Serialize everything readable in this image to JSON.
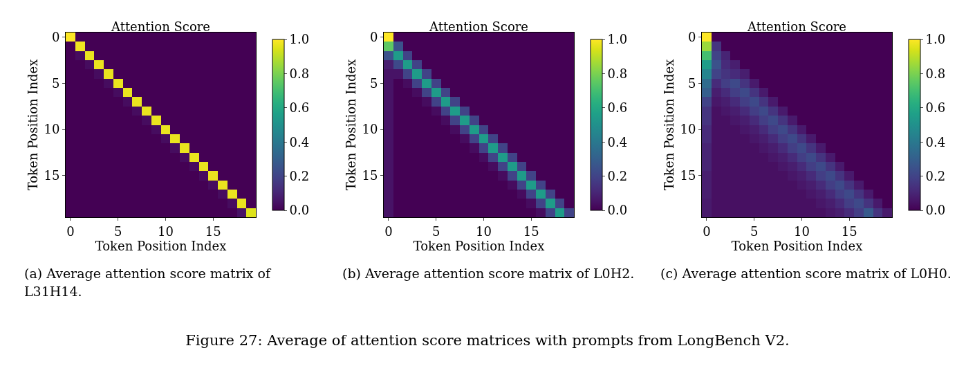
{
  "chart_data": [
    {
      "type": "heatmap",
      "title": "Attention Score",
      "xlabel": "Token Position Index",
      "ylabel": "Token Position Index",
      "categories": [
        "0",
        null,
        null,
        null,
        null,
        "5",
        null,
        null,
        null,
        null,
        "10",
        null,
        null,
        null,
        null,
        "15",
        null,
        null,
        null,
        null
      ],
      "y_categories": [
        "0",
        null,
        null,
        null,
        null,
        "5",
        null,
        null,
        null,
        null,
        "10",
        null,
        null,
        null,
        null,
        "15",
        null,
        null,
        null,
        null
      ],
      "clim": [
        0,
        1
      ],
      "cticks": [
        {
          "value": 0,
          "label": "0.0"
        },
        {
          "value": 0.2,
          "label": "0.2"
        },
        {
          "value": 0.4,
          "label": "0.4"
        },
        {
          "value": 0.6,
          "label": "0.6"
        },
        {
          "value": 0.8,
          "label": "0.8"
        },
        {
          "value": 1,
          "label": "1.0"
        }
      ],
      "annotations": [
        "(a) Average attention score matrix of L31H14."
      ],
      "cells": [
        [
          1,
          0,
          0,
          0,
          0,
          0,
          0,
          0,
          0,
          0,
          0,
          0,
          0,
          0,
          0,
          0,
          0,
          0,
          0,
          0
        ],
        [
          0,
          0.98,
          0,
          0,
          0,
          0,
          0,
          0,
          0,
          0,
          0,
          0,
          0,
          0,
          0,
          0,
          0,
          0,
          0,
          0
        ],
        [
          0,
          0.03,
          0.97,
          0,
          0,
          0,
          0,
          0,
          0,
          0,
          0,
          0,
          0,
          0,
          0,
          0,
          0,
          0,
          0,
          0
        ],
        [
          0,
          0,
          0.03,
          0.97,
          0,
          0,
          0,
          0,
          0,
          0,
          0,
          0,
          0,
          0,
          0,
          0,
          0,
          0,
          0,
          0
        ],
        [
          0,
          0,
          0,
          0.03,
          0.97,
          0,
          0,
          0,
          0,
          0,
          0,
          0,
          0,
          0,
          0,
          0,
          0,
          0,
          0,
          0
        ],
        [
          0,
          0,
          0,
          0,
          0.03,
          0.97,
          0,
          0,
          0,
          0,
          0,
          0,
          0,
          0,
          0,
          0,
          0,
          0,
          0,
          0
        ],
        [
          0,
          0,
          0,
          0,
          0,
          0.03,
          0.97,
          0,
          0,
          0,
          0,
          0,
          0,
          0,
          0,
          0,
          0,
          0,
          0,
          0
        ],
        [
          0,
          0,
          0,
          0,
          0,
          0,
          0.03,
          0.97,
          0,
          0,
          0,
          0,
          0,
          0,
          0,
          0,
          0,
          0,
          0,
          0
        ],
        [
          0,
          0,
          0,
          0,
          0,
          0,
          0,
          0.03,
          0.97,
          0,
          0,
          0,
          0,
          0,
          0,
          0,
          0,
          0,
          0,
          0
        ],
        [
          0,
          0,
          0,
          0,
          0,
          0,
          0,
          0,
          0.03,
          0.97,
          0,
          0,
          0,
          0,
          0,
          0,
          0,
          0,
          0,
          0
        ],
        [
          0,
          0,
          0,
          0,
          0,
          0,
          0,
          0,
          0,
          0.03,
          0.97,
          0,
          0,
          0,
          0,
          0,
          0,
          0,
          0,
          0
        ],
        [
          0,
          0,
          0,
          0,
          0,
          0,
          0,
          0,
          0,
          0,
          0.03,
          0.97,
          0,
          0,
          0,
          0,
          0,
          0,
          0,
          0
        ],
        [
          0,
          0,
          0,
          0,
          0,
          0,
          0,
          0,
          0,
          0,
          0,
          0.03,
          0.97,
          0,
          0,
          0,
          0,
          0,
          0,
          0
        ],
        [
          0,
          0,
          0,
          0,
          0,
          0,
          0,
          0,
          0,
          0,
          0,
          0,
          0.03,
          0.97,
          0,
          0,
          0,
          0,
          0,
          0
        ],
        [
          0,
          0,
          0,
          0,
          0,
          0,
          0,
          0,
          0,
          0,
          0,
          0,
          0,
          0.03,
          0.97,
          0,
          0,
          0,
          0,
          0
        ],
        [
          0,
          0,
          0,
          0,
          0,
          0,
          0,
          0,
          0,
          0,
          0,
          0,
          0,
          0,
          0.03,
          0.97,
          0,
          0,
          0,
          0
        ],
        [
          0,
          0,
          0,
          0,
          0,
          0,
          0,
          0,
          0,
          0,
          0,
          0,
          0,
          0,
          0,
          0.03,
          0.97,
          0,
          0,
          0
        ],
        [
          0,
          0,
          0,
          0,
          0,
          0,
          0,
          0,
          0,
          0,
          0,
          0,
          0,
          0,
          0,
          0,
          0.03,
          0.97,
          0,
          0
        ],
        [
          0,
          0,
          0,
          0,
          0,
          0,
          0,
          0,
          0,
          0,
          0,
          0,
          0,
          0,
          0,
          0,
          0,
          0.03,
          0.97,
          0
        ],
        [
          0,
          0,
          0,
          0,
          0,
          0,
          0,
          0,
          0,
          0,
          0,
          0,
          0,
          0,
          0,
          0,
          0,
          0,
          0.05,
          0.95
        ]
      ]
    },
    {
      "type": "heatmap",
      "title": "Attention Score",
      "xlabel": "Token Position Index",
      "ylabel": "Token Position Index",
      "categories": [
        "0",
        null,
        null,
        null,
        null,
        "5",
        null,
        null,
        null,
        null,
        "10",
        null,
        null,
        null,
        null,
        "15",
        null,
        null,
        null,
        null
      ],
      "y_categories": [
        "0",
        null,
        null,
        null,
        null,
        "5",
        null,
        null,
        null,
        null,
        "10",
        null,
        null,
        null,
        null,
        "15",
        null,
        null,
        null,
        null
      ],
      "clim": [
        0,
        1
      ],
      "cticks": [
        {
          "value": 0,
          "label": "0.0"
        },
        {
          "value": 0.2,
          "label": "0.2"
        },
        {
          "value": 0.4,
          "label": "0.4"
        },
        {
          "value": 0.6,
          "label": "0.6"
        },
        {
          "value": 0.8,
          "label": "0.8"
        },
        {
          "value": 1,
          "label": "1.0"
        }
      ],
      "annotations": [
        "(b) Average attention score matrix of L0H2."
      ],
      "cells": [
        [
          1,
          0,
          0,
          0,
          0,
          0,
          0,
          0,
          0,
          0,
          0,
          0,
          0,
          0,
          0,
          0,
          0,
          0,
          0,
          0
        ],
        [
          0.75,
          0.25,
          0,
          0,
          0,
          0,
          0,
          0,
          0,
          0,
          0,
          0,
          0,
          0,
          0,
          0,
          0,
          0,
          0,
          0
        ],
        [
          0.25,
          0.55,
          0.2,
          0,
          0,
          0,
          0,
          0,
          0,
          0,
          0,
          0,
          0,
          0,
          0,
          0,
          0,
          0,
          0,
          0
        ],
        [
          0.08,
          0.22,
          0.55,
          0.2,
          0,
          0,
          0,
          0,
          0,
          0,
          0,
          0,
          0,
          0,
          0,
          0,
          0,
          0,
          0,
          0
        ],
        [
          0.05,
          0.05,
          0.2,
          0.55,
          0.2,
          0,
          0,
          0,
          0,
          0,
          0,
          0,
          0,
          0,
          0,
          0,
          0,
          0,
          0,
          0
        ],
        [
          0.05,
          0,
          0.03,
          0.2,
          0.55,
          0.2,
          0,
          0,
          0,
          0,
          0,
          0,
          0,
          0,
          0,
          0,
          0,
          0,
          0,
          0
        ],
        [
          0.05,
          0,
          0,
          0.03,
          0.2,
          0.55,
          0.2,
          0,
          0,
          0,
          0,
          0,
          0,
          0,
          0,
          0,
          0,
          0,
          0,
          0
        ],
        [
          0.05,
          0,
          0,
          0,
          0.03,
          0.2,
          0.55,
          0.2,
          0,
          0,
          0,
          0,
          0,
          0,
          0,
          0,
          0,
          0,
          0,
          0
        ],
        [
          0.05,
          0,
          0,
          0,
          0,
          0.03,
          0.2,
          0.55,
          0.2,
          0,
          0,
          0,
          0,
          0,
          0,
          0,
          0,
          0,
          0,
          0
        ],
        [
          0.05,
          0,
          0,
          0,
          0,
          0,
          0.03,
          0.2,
          0.55,
          0.2,
          0,
          0,
          0,
          0,
          0,
          0,
          0,
          0,
          0,
          0
        ],
        [
          0.05,
          0,
          0,
          0,
          0,
          0,
          0,
          0.03,
          0.2,
          0.55,
          0.2,
          0,
          0,
          0,
          0,
          0,
          0,
          0,
          0,
          0
        ],
        [
          0.05,
          0,
          0,
          0,
          0,
          0,
          0,
          0,
          0.03,
          0.2,
          0.55,
          0.2,
          0,
          0,
          0,
          0,
          0,
          0,
          0,
          0
        ],
        [
          0.05,
          0,
          0,
          0,
          0,
          0,
          0,
          0,
          0,
          0.03,
          0.2,
          0.55,
          0.2,
          0,
          0,
          0,
          0,
          0,
          0,
          0
        ],
        [
          0.05,
          0,
          0,
          0,
          0,
          0,
          0,
          0,
          0,
          0,
          0.03,
          0.2,
          0.55,
          0.2,
          0,
          0,
          0,
          0,
          0,
          0
        ],
        [
          0.05,
          0,
          0,
          0,
          0,
          0,
          0,
          0,
          0,
          0,
          0,
          0.03,
          0.2,
          0.55,
          0.2,
          0,
          0,
          0,
          0,
          0
        ],
        [
          0.05,
          0,
          0,
          0,
          0,
          0,
          0,
          0,
          0,
          0,
          0,
          0,
          0.03,
          0.2,
          0.55,
          0.2,
          0,
          0,
          0,
          0
        ],
        [
          0.05,
          0,
          0,
          0,
          0,
          0,
          0,
          0,
          0,
          0,
          0,
          0,
          0,
          0.03,
          0.2,
          0.55,
          0.2,
          0,
          0,
          0
        ],
        [
          0.05,
          0,
          0,
          0,
          0,
          0,
          0,
          0,
          0,
          0,
          0,
          0,
          0,
          0,
          0.03,
          0.2,
          0.55,
          0.2,
          0,
          0
        ],
        [
          0.05,
          0,
          0,
          0,
          0,
          0,
          0,
          0,
          0,
          0,
          0,
          0,
          0,
          0,
          0,
          0.03,
          0.2,
          0.55,
          0.2,
          0
        ],
        [
          0.05,
          0,
          0,
          0,
          0,
          0,
          0,
          0,
          0,
          0,
          0,
          0,
          0,
          0,
          0,
          0,
          0.03,
          0.2,
          0.55,
          0.2
        ]
      ]
    },
    {
      "type": "heatmap",
      "title": "Attention Score",
      "xlabel": "Token Position Index",
      "ylabel": "Token Position Index",
      "categories": [
        "0",
        null,
        null,
        null,
        null,
        "5",
        null,
        null,
        null,
        null,
        "10",
        null,
        null,
        null,
        null,
        "15",
        null,
        null,
        null,
        null
      ],
      "y_categories": [
        "0",
        null,
        null,
        null,
        null,
        "5",
        null,
        null,
        null,
        null,
        "10",
        null,
        null,
        null,
        null,
        "15",
        null,
        null,
        null,
        null
      ],
      "clim": [
        0,
        1
      ],
      "cticks": [
        {
          "value": 0,
          "label": "0.0"
        },
        {
          "value": 0.2,
          "label": "0.2"
        },
        {
          "value": 0.4,
          "label": "0.4"
        },
        {
          "value": 0.6,
          "label": "0.6"
        },
        {
          "value": 0.8,
          "label": "0.8"
        },
        {
          "value": 1,
          "label": "1.0"
        }
      ],
      "annotations": [
        "(c) Average attention score matrix of L0H0.",
        "Figure 27: Average of attention score matrices with prompts from LongBench V2."
      ],
      "cells": [
        [
          1,
          0,
          0,
          0,
          0,
          0,
          0,
          0,
          0,
          0,
          0,
          0,
          0,
          0,
          0,
          0,
          0,
          0,
          0,
          0
        ],
        [
          0.85,
          0.15,
          0,
          0,
          0,
          0,
          0,
          0,
          0,
          0,
          0,
          0,
          0,
          0,
          0,
          0,
          0,
          0,
          0,
          0
        ],
        [
          0.7,
          0.2,
          0.1,
          0,
          0,
          0,
          0,
          0,
          0,
          0,
          0,
          0,
          0,
          0,
          0,
          0,
          0,
          0,
          0,
          0
        ],
        [
          0.55,
          0.25,
          0.12,
          0.08,
          0,
          0,
          0,
          0,
          0,
          0,
          0,
          0,
          0,
          0,
          0,
          0,
          0,
          0,
          0,
          0
        ],
        [
          0.45,
          0.2,
          0.15,
          0.12,
          0.08,
          0,
          0,
          0,
          0,
          0,
          0,
          0,
          0,
          0,
          0,
          0,
          0,
          0,
          0,
          0
        ],
        [
          0.35,
          0.12,
          0.18,
          0.22,
          0.15,
          0.07,
          0,
          0,
          0,
          0,
          0,
          0,
          0,
          0,
          0,
          0,
          0,
          0,
          0,
          0
        ],
        [
          0.3,
          0.08,
          0.12,
          0.18,
          0.22,
          0.15,
          0.07,
          0,
          0,
          0,
          0,
          0,
          0,
          0,
          0,
          0,
          0,
          0,
          0,
          0
        ],
        [
          0.2,
          0.06,
          0.08,
          0.12,
          0.18,
          0.22,
          0.15,
          0.07,
          0,
          0,
          0,
          0,
          0,
          0,
          0,
          0,
          0,
          0,
          0,
          0
        ],
        [
          0.15,
          0.04,
          0.06,
          0.08,
          0.12,
          0.18,
          0.22,
          0.15,
          0.07,
          0,
          0,
          0,
          0,
          0,
          0,
          0,
          0,
          0,
          0,
          0
        ],
        [
          0.15,
          0.04,
          0.04,
          0.06,
          0.08,
          0.12,
          0.18,
          0.22,
          0.15,
          0.07,
          0,
          0,
          0,
          0,
          0,
          0,
          0,
          0,
          0,
          0
        ],
        [
          0.12,
          0.04,
          0.04,
          0.04,
          0.06,
          0.08,
          0.12,
          0.18,
          0.22,
          0.15,
          0.07,
          0,
          0,
          0,
          0,
          0,
          0,
          0,
          0,
          0
        ],
        [
          0.12,
          0.04,
          0.04,
          0.04,
          0.04,
          0.06,
          0.08,
          0.12,
          0.18,
          0.22,
          0.15,
          0.07,
          0,
          0,
          0,
          0,
          0,
          0,
          0,
          0
        ],
        [
          0.1,
          0.04,
          0.04,
          0.04,
          0.04,
          0.04,
          0.06,
          0.08,
          0.12,
          0.18,
          0.22,
          0.15,
          0.07,
          0,
          0,
          0,
          0,
          0,
          0,
          0
        ],
        [
          0.1,
          0.04,
          0.04,
          0.04,
          0.04,
          0.04,
          0.04,
          0.06,
          0.08,
          0.12,
          0.18,
          0.22,
          0.15,
          0.07,
          0,
          0,
          0,
          0,
          0,
          0
        ],
        [
          0.1,
          0.04,
          0.04,
          0.04,
          0.04,
          0.04,
          0.04,
          0.04,
          0.06,
          0.08,
          0.12,
          0.18,
          0.22,
          0.15,
          0.07,
          0,
          0,
          0,
          0,
          0
        ],
        [
          0.08,
          0.04,
          0.04,
          0.04,
          0.04,
          0.04,
          0.04,
          0.04,
          0.04,
          0.06,
          0.08,
          0.12,
          0.18,
          0.22,
          0.15,
          0.07,
          0,
          0,
          0,
          0
        ],
        [
          0.08,
          0.04,
          0.04,
          0.04,
          0.04,
          0.04,
          0.04,
          0.04,
          0.04,
          0.04,
          0.06,
          0.08,
          0.12,
          0.18,
          0.22,
          0.15,
          0.07,
          0,
          0,
          0
        ],
        [
          0.08,
          0.04,
          0.04,
          0.04,
          0.04,
          0.04,
          0.04,
          0.04,
          0.04,
          0.04,
          0.04,
          0.06,
          0.08,
          0.12,
          0.18,
          0.22,
          0.15,
          0.07,
          0,
          0
        ],
        [
          0.07,
          0.04,
          0.04,
          0.04,
          0.04,
          0.04,
          0.04,
          0.04,
          0.04,
          0.04,
          0.04,
          0.04,
          0.06,
          0.08,
          0.12,
          0.18,
          0.22,
          0.15,
          0.07,
          0
        ],
        [
          0.07,
          0.04,
          0.04,
          0.04,
          0.04,
          0.04,
          0.04,
          0.04,
          0.04,
          0.04,
          0.04,
          0.04,
          0.04,
          0.06,
          0.08,
          0.12,
          0.18,
          0.28,
          0.15,
          0.07
        ]
      ]
    }
  ]
}
